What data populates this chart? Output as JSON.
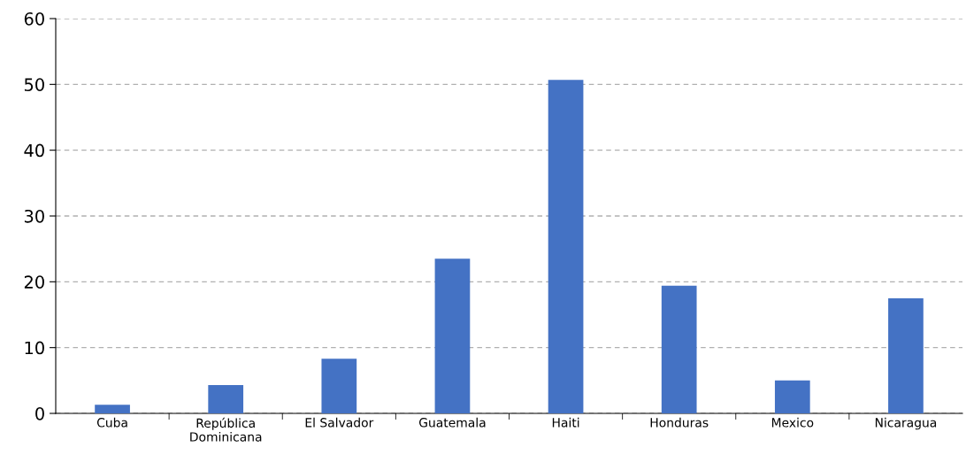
{
  "chart_data": {
    "type": "bar",
    "categories": [
      "Cuba",
      "República\nDominicana",
      "El Salvador",
      "Guatemala",
      "Haiti",
      "Honduras",
      "Mexico",
      "Nicaragua"
    ],
    "values": [
      1.3,
      4.3,
      8.3,
      23.5,
      50.7,
      19.4,
      5.0,
      17.5
    ],
    "color": "#4472c4",
    "ylim": [
      0,
      60
    ],
    "yticks": [
      0,
      10,
      20,
      30,
      40,
      50,
      60
    ],
    "grid": "y",
    "legend": false
  }
}
